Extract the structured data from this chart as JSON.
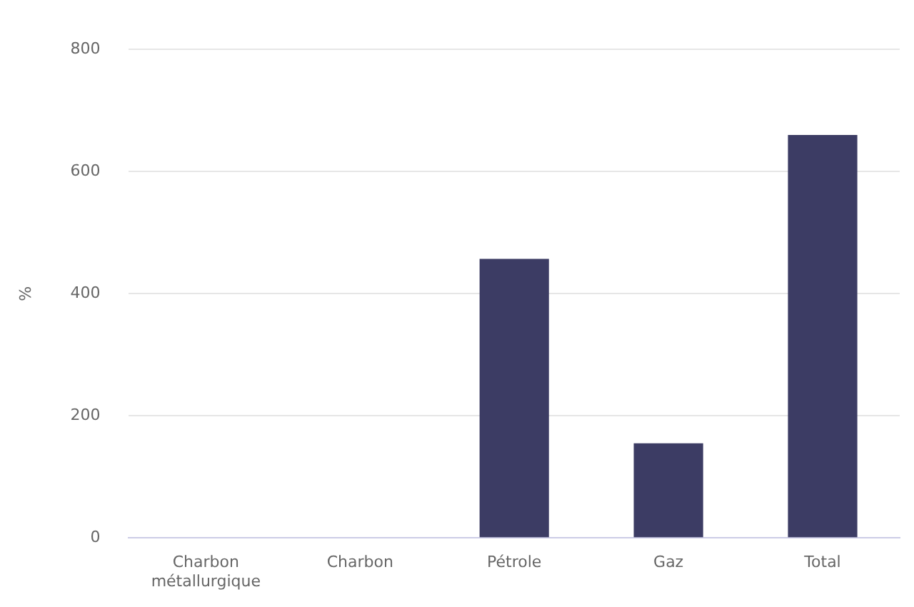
{
  "chart_data": {
    "type": "bar",
    "ylabel": "%",
    "categories": [
      "Charbon métallurgique",
      "Charbon",
      "Pétrole",
      "Gaz",
      "Total"
    ],
    "series": [
      {
        "color": "#3c3c64",
        "values": [
          0,
          0,
          457,
          155,
          660
        ]
      }
    ],
    "ylim": [
      0,
      800
    ],
    "yticks": [
      0,
      200,
      400,
      600,
      800
    ],
    "grid": "y",
    "legend": false
  }
}
